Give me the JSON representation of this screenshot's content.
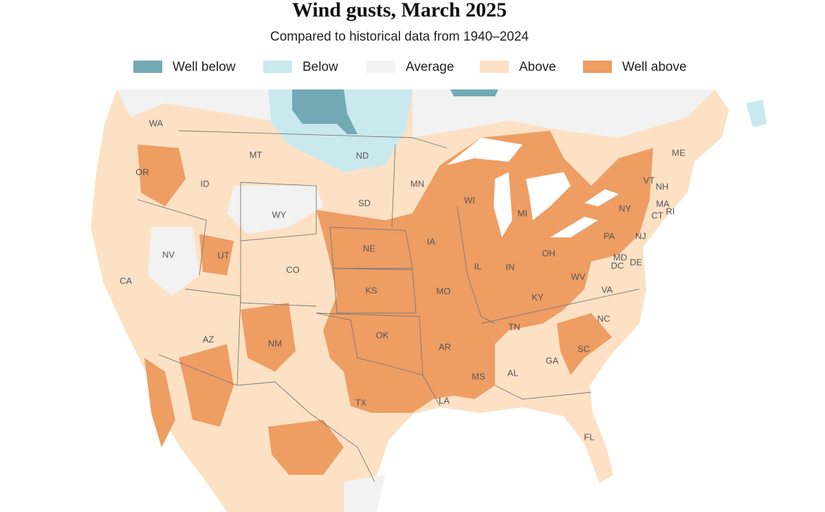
{
  "title": "Wind gusts, March 2025",
  "subtitle": "Compared to historical data from 1940–2024",
  "legend": [
    {
      "label": "Well below",
      "color": "#72a9b5"
    },
    {
      "label": "Below",
      "color": "#c9e9ee"
    },
    {
      "label": "Average",
      "color": "#f2f2f2"
    },
    {
      "label": "Above",
      "color": "#fde1c4"
    },
    {
      "label": "Well above",
      "color": "#ee9d63"
    }
  ],
  "state_labels": [
    "WA",
    "MT",
    "ND",
    "MN",
    "OR",
    "ID",
    "SD",
    "WI",
    "MI",
    "NY",
    "ME",
    "VT",
    "NH",
    "MA",
    "RI",
    "CT",
    "NJ",
    "PA",
    "WY",
    "NE",
    "IA",
    "IL",
    "IN",
    "OH",
    "NV",
    "UT",
    "CO",
    "MD",
    "DE",
    "DC",
    "WV",
    "VA",
    "KS",
    "MO",
    "KY",
    "CA",
    "TN",
    "NC",
    "OK",
    "AR",
    "SC",
    "AZ",
    "NM",
    "GA",
    "AL",
    "MS",
    "TX",
    "LA",
    "FL"
  ]
}
